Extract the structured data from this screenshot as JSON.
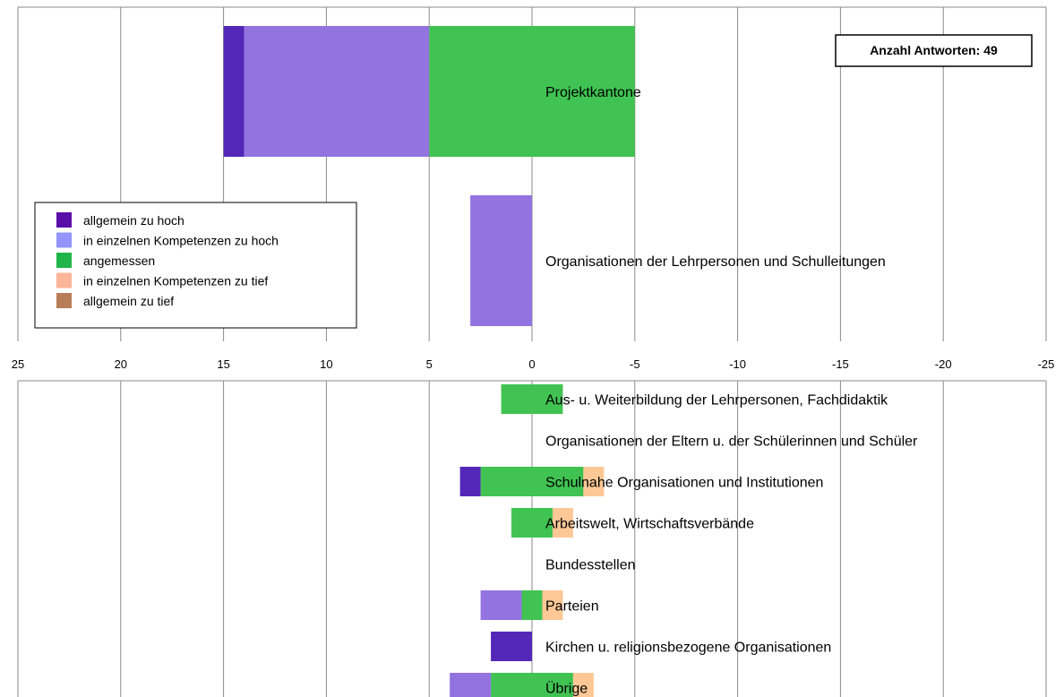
{
  "chart_data": {
    "type": "bar",
    "orientation": "horizontal-stacked",
    "xlim": [
      25,
      -25
    ],
    "x_ticks": [
      "25",
      "20",
      "15",
      "10",
      "5",
      "0",
      "-5",
      "-10",
      "-15",
      "-20",
      "-25"
    ],
    "grid": true,
    "note": "Anzahl Antworten: 49",
    "legend_position": "left",
    "series": [
      {
        "key": "a",
        "name": "allgemein zu hoch",
        "color": "#5328b8",
        "legend_color": "#5a0ea8"
      },
      {
        "key": "b",
        "name": "in einzelnen Kompetenzen zu hoch",
        "color": "#9273e0",
        "legend_color": "#9494ff"
      },
      {
        "key": "c",
        "name": "angemessen",
        "color": "#40c352",
        "legend_color": "#1fb54a"
      },
      {
        "key": "d",
        "name": "in einzelnen Kompetenzen zu tief",
        "color": "#fdc896",
        "legend_color": "#fdb59a"
      },
      {
        "key": "e",
        "name": "allgemein zu tief",
        "color": "#b87d57",
        "legend_color": "#b87d57"
      }
    ],
    "panels": [
      {
        "categories": [
          {
            "label": "Projektkantone",
            "values": {
              "a": 1,
              "b": 9,
              "c": 10,
              "d": 0,
              "e": 0
            }
          },
          {
            "label": "Organisationen der Lehrpersonen und Schulleitungen",
            "values": {
              "a": 0,
              "b": 3,
              "c": 0,
              "d": 0,
              "e": 0
            }
          }
        ]
      },
      {
        "categories": [
          {
            "label": "Aus- u. Weiterbildung der Lehrpersonen, Fachdidaktik",
            "values": {
              "a": 0,
              "b": 0,
              "c": 3,
              "d": 0,
              "e": 0
            }
          },
          {
            "label": "Organisationen der Eltern u. der Schülerinnen und Schüler",
            "values": {
              "a": 0,
              "b": 0,
              "c": 0,
              "d": 0,
              "e": 0
            }
          },
          {
            "label": "Schulnahe Organisationen und Institutionen",
            "values": {
              "a": 1,
              "b": 0,
              "c": 5,
              "d": 1,
              "e": 0
            }
          },
          {
            "label": "Arbeitswelt, Wirtschaftsverbände",
            "values": {
              "a": 0,
              "b": 0,
              "c": 2,
              "d": 1,
              "e": 0
            }
          },
          {
            "label": "Bundesstellen",
            "values": {
              "a": 0,
              "b": 0,
              "c": 0,
              "d": 0,
              "e": 0
            }
          },
          {
            "label": "Parteien",
            "values": {
              "a": 0,
              "b": 2,
              "c": 1,
              "d": 1,
              "e": 0
            }
          },
          {
            "label": "Kirchen u. religionsbezogene Organisationen",
            "values": {
              "a": 2,
              "b": 0,
              "c": 0,
              "d": 0,
              "e": 0
            }
          },
          {
            "label": "Übrige",
            "values": {
              "a": 0,
              "b": 2,
              "c": 4,
              "d": 1,
              "e": 0
            }
          }
        ]
      }
    ]
  }
}
